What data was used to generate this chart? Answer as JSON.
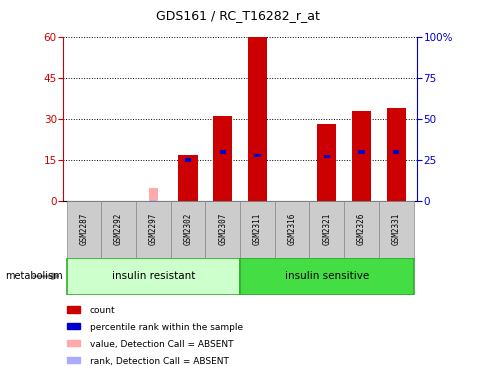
{
  "title": "GDS161 / RC_T16282_r_at",
  "samples": [
    "GSM2287",
    "GSM2292",
    "GSM2297",
    "GSM2302",
    "GSM2307",
    "GSM2311",
    "GSM2316",
    "GSM2321",
    "GSM2326",
    "GSM2331"
  ],
  "count_values": [
    0,
    0,
    0,
    17,
    31,
    60,
    0,
    28,
    33,
    34
  ],
  "count_absent": [
    0,
    0,
    5,
    0,
    0,
    0,
    0,
    0,
    0,
    0
  ],
  "percentile_values": [
    0,
    0,
    0,
    25,
    30,
    28,
    0,
    27,
    30,
    30
  ],
  "percentile_absent": [
    0,
    0,
    1,
    0,
    0,
    0,
    0,
    0,
    0,
    0
  ],
  "absent_mask": [
    false,
    false,
    true,
    false,
    false,
    false,
    false,
    false,
    false,
    false
  ],
  "ylim_left": [
    0,
    60
  ],
  "ylim_right": [
    0,
    100
  ],
  "yticks_left": [
    0,
    15,
    30,
    45,
    60
  ],
  "yticks_right": [
    0,
    25,
    50,
    75,
    100
  ],
  "ytick_labels_right": [
    "0",
    "25",
    "50",
    "75",
    "100%"
  ],
  "color_count": "#cc0000",
  "color_percentile": "#0000cc",
  "color_absent_count": "#ffaaaa",
  "color_absent_percentile": "#aaaaff",
  "bar_width": 0.55,
  "pct_bar_width": 0.18,
  "group_bg_color": "#cccccc",
  "group_label_resistant": "insulin resistant",
  "group_label_sensitive": "insulin sensitive",
  "group_color_resistant": "#ccffcc",
  "group_color_sensitive": "#44dd44",
  "legend_items": [
    "count",
    "percentile rank within the sample",
    "value, Detection Call = ABSENT",
    "rank, Detection Call = ABSENT"
  ],
  "legend_colors": [
    "#cc0000",
    "#0000cc",
    "#ffaaaa",
    "#aaaaff"
  ],
  "metabolism_label": "metabolism"
}
